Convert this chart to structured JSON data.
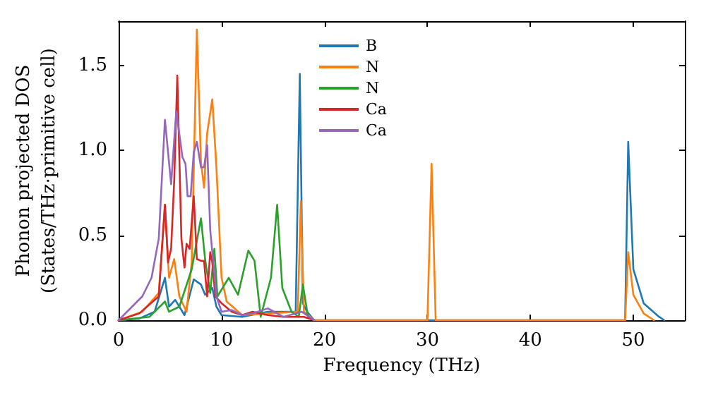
{
  "chart_data": {
    "type": "line",
    "xlabel": "Frequency (THz)",
    "ylabel": "Phonon projected DOS\n(States/THz·primitive cell)",
    "xlim": [
      0,
      55
    ],
    "ylim": [
      0,
      1.76
    ],
    "xticks": [
      0,
      10,
      20,
      30,
      40,
      50
    ],
    "yticks": [
      {
        "value": 0,
        "label": "0.0"
      },
      {
        "value": 0.5,
        "label": "0.5"
      },
      {
        "value": 1,
        "label": "1.0"
      },
      {
        "value": 1.5,
        "label": "1.5"
      }
    ],
    "legend": "top",
    "grid": false,
    "marker": "none",
    "line_style": "solid",
    "series": [
      {
        "name": "B",
        "color": "#1f77b4",
        "x": [
          0,
          2,
          3.5,
          4.5,
          4.9,
          5.5,
          6.4,
          7.3,
          8,
          8.4,
          9.1,
          9.5,
          10,
          12,
          14.5,
          15,
          17.2,
          17.6,
          17.9,
          18.3,
          19,
          49.2,
          49.5,
          50,
          51,
          52.5,
          53
        ],
        "values": [
          0,
          0.01,
          0.05,
          0.25,
          0.08,
          0.12,
          0.03,
          0.24,
          0.21,
          0.15,
          0.19,
          0.08,
          0.03,
          0.02,
          0.05,
          0.05,
          0.05,
          1.45,
          0.1,
          0.05,
          0,
          0,
          1.05,
          0.3,
          0.1,
          0.02,
          0
        ]
      },
      {
        "name": "N",
        "color": "#ff7f0e",
        "x": [
          0,
          2.3,
          3.9,
          4.5,
          4.9,
          5.4,
          5.9,
          6.6,
          7.1,
          7.6,
          8,
          8.3,
          8.6,
          9.1,
          9.5,
          10,
          10.5,
          12,
          14.5,
          17.4,
          17.7,
          18,
          19,
          30,
          30.4,
          30.8,
          49.2,
          49.5,
          50,
          51,
          52
        ],
        "values": [
          0,
          0.05,
          0.16,
          0.68,
          0.25,
          0.36,
          0.14,
          0.05,
          0.34,
          1.71,
          0.93,
          0.78,
          1.1,
          1.3,
          0.9,
          0.25,
          0.11,
          0.03,
          0.04,
          0.05,
          0.7,
          0.05,
          0,
          0,
          0.92,
          0,
          0,
          0.4,
          0.15,
          0.04,
          0
        ]
      },
      {
        "name": "N",
        "color": "#2ca02c",
        "x": [
          0,
          3,
          4.5,
          4.9,
          5.9,
          7.1,
          8,
          8.4,
          8.9,
          9.3,
          9.6,
          10.7,
          11.6,
          12.6,
          13.2,
          13.8,
          14.8,
          15.4,
          15.9,
          16.8,
          17.5,
          17.9,
          18.4,
          19
        ],
        "values": [
          0,
          0.02,
          0.11,
          0.05,
          0.08,
          0.3,
          0.6,
          0.36,
          0.16,
          0.42,
          0.14,
          0.25,
          0.15,
          0.41,
          0.35,
          0.02,
          0.25,
          0.68,
          0.19,
          0.05,
          0.02,
          0.21,
          0.02,
          0
        ]
      },
      {
        "name": "Ca",
        "color": "#d62728",
        "x": [
          0,
          2,
          3.9,
          4.5,
          4.8,
          5.1,
          5.4,
          5.7,
          6.1,
          6.4,
          6.6,
          6.9,
          7.3,
          7.6,
          8,
          8.3,
          8.6,
          8.9,
          9.1,
          9.4,
          10,
          11,
          12,
          13,
          14.5,
          16,
          18,
          19
        ],
        "values": [
          0,
          0.04,
          0.14,
          0.68,
          0.34,
          0.42,
          0.82,
          1.44,
          0.48,
          0.31,
          0.45,
          0.42,
          0.73,
          0.36,
          0.35,
          0.35,
          0.14,
          0.4,
          0.34,
          0.14,
          0.1,
          0.05,
          0.03,
          0.05,
          0.03,
          0.02,
          0.02,
          0
        ]
      },
      {
        "name": "Ca",
        "color": "#9467bd",
        "x": [
          0,
          2.3,
          3.2,
          3.9,
          4.5,
          5.1,
          5.6,
          6.2,
          6.5,
          6.7,
          7,
          7.3,
          7.6,
          8,
          8.3,
          8.6,
          8.9,
          9.2,
          9.5,
          10,
          11,
          12,
          13,
          14.5,
          16,
          17.8,
          19
        ],
        "values": [
          0,
          0.14,
          0.25,
          0.48,
          1.18,
          0.8,
          1.23,
          0.96,
          0.92,
          0.73,
          0.73,
          0.99,
          1.05,
          0.9,
          0.9,
          1.03,
          0.53,
          0.34,
          0.14,
          0.05,
          0.06,
          0.03,
          0.04,
          0.07,
          0.02,
          0.05,
          0
        ]
      }
    ]
  }
}
